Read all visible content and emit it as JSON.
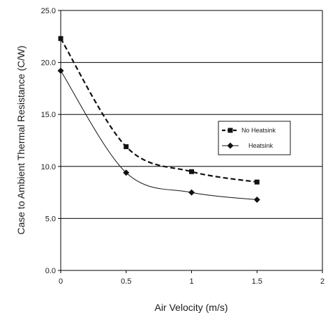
{
  "chart_data": {
    "type": "line",
    "title": "",
    "xlabel": "Air  Velocity (m/s)",
    "ylabel": "Case to Ambient Thermal Resistance (C/W)",
    "xlim": [
      0,
      2
    ],
    "ylim": [
      0,
      25
    ],
    "x_ticks": [
      "0",
      "0.5",
      "1",
      "1.5",
      "2"
    ],
    "y_ticks": [
      "0.0",
      "5.0",
      "10.0",
      "15.0",
      "20.0",
      "25.0"
    ],
    "grid": "horizontal",
    "legend_position": "right",
    "series": [
      {
        "name": "No Heatsink",
        "marker": "square",
        "line_style": "dashed",
        "x": [
          0,
          0.5,
          1.0,
          1.5
        ],
        "y": [
          22.3,
          11.9,
          9.5,
          8.5
        ]
      },
      {
        "name": "Heatsink",
        "marker": "diamond",
        "line_style": "solid",
        "x": [
          0,
          0.5,
          1.0,
          1.5
        ],
        "y": [
          19.2,
          9.4,
          7.5,
          6.8
        ]
      }
    ],
    "colors": {
      "series": "#111111",
      "grid": "#000000",
      "background": "#ffffff"
    }
  }
}
